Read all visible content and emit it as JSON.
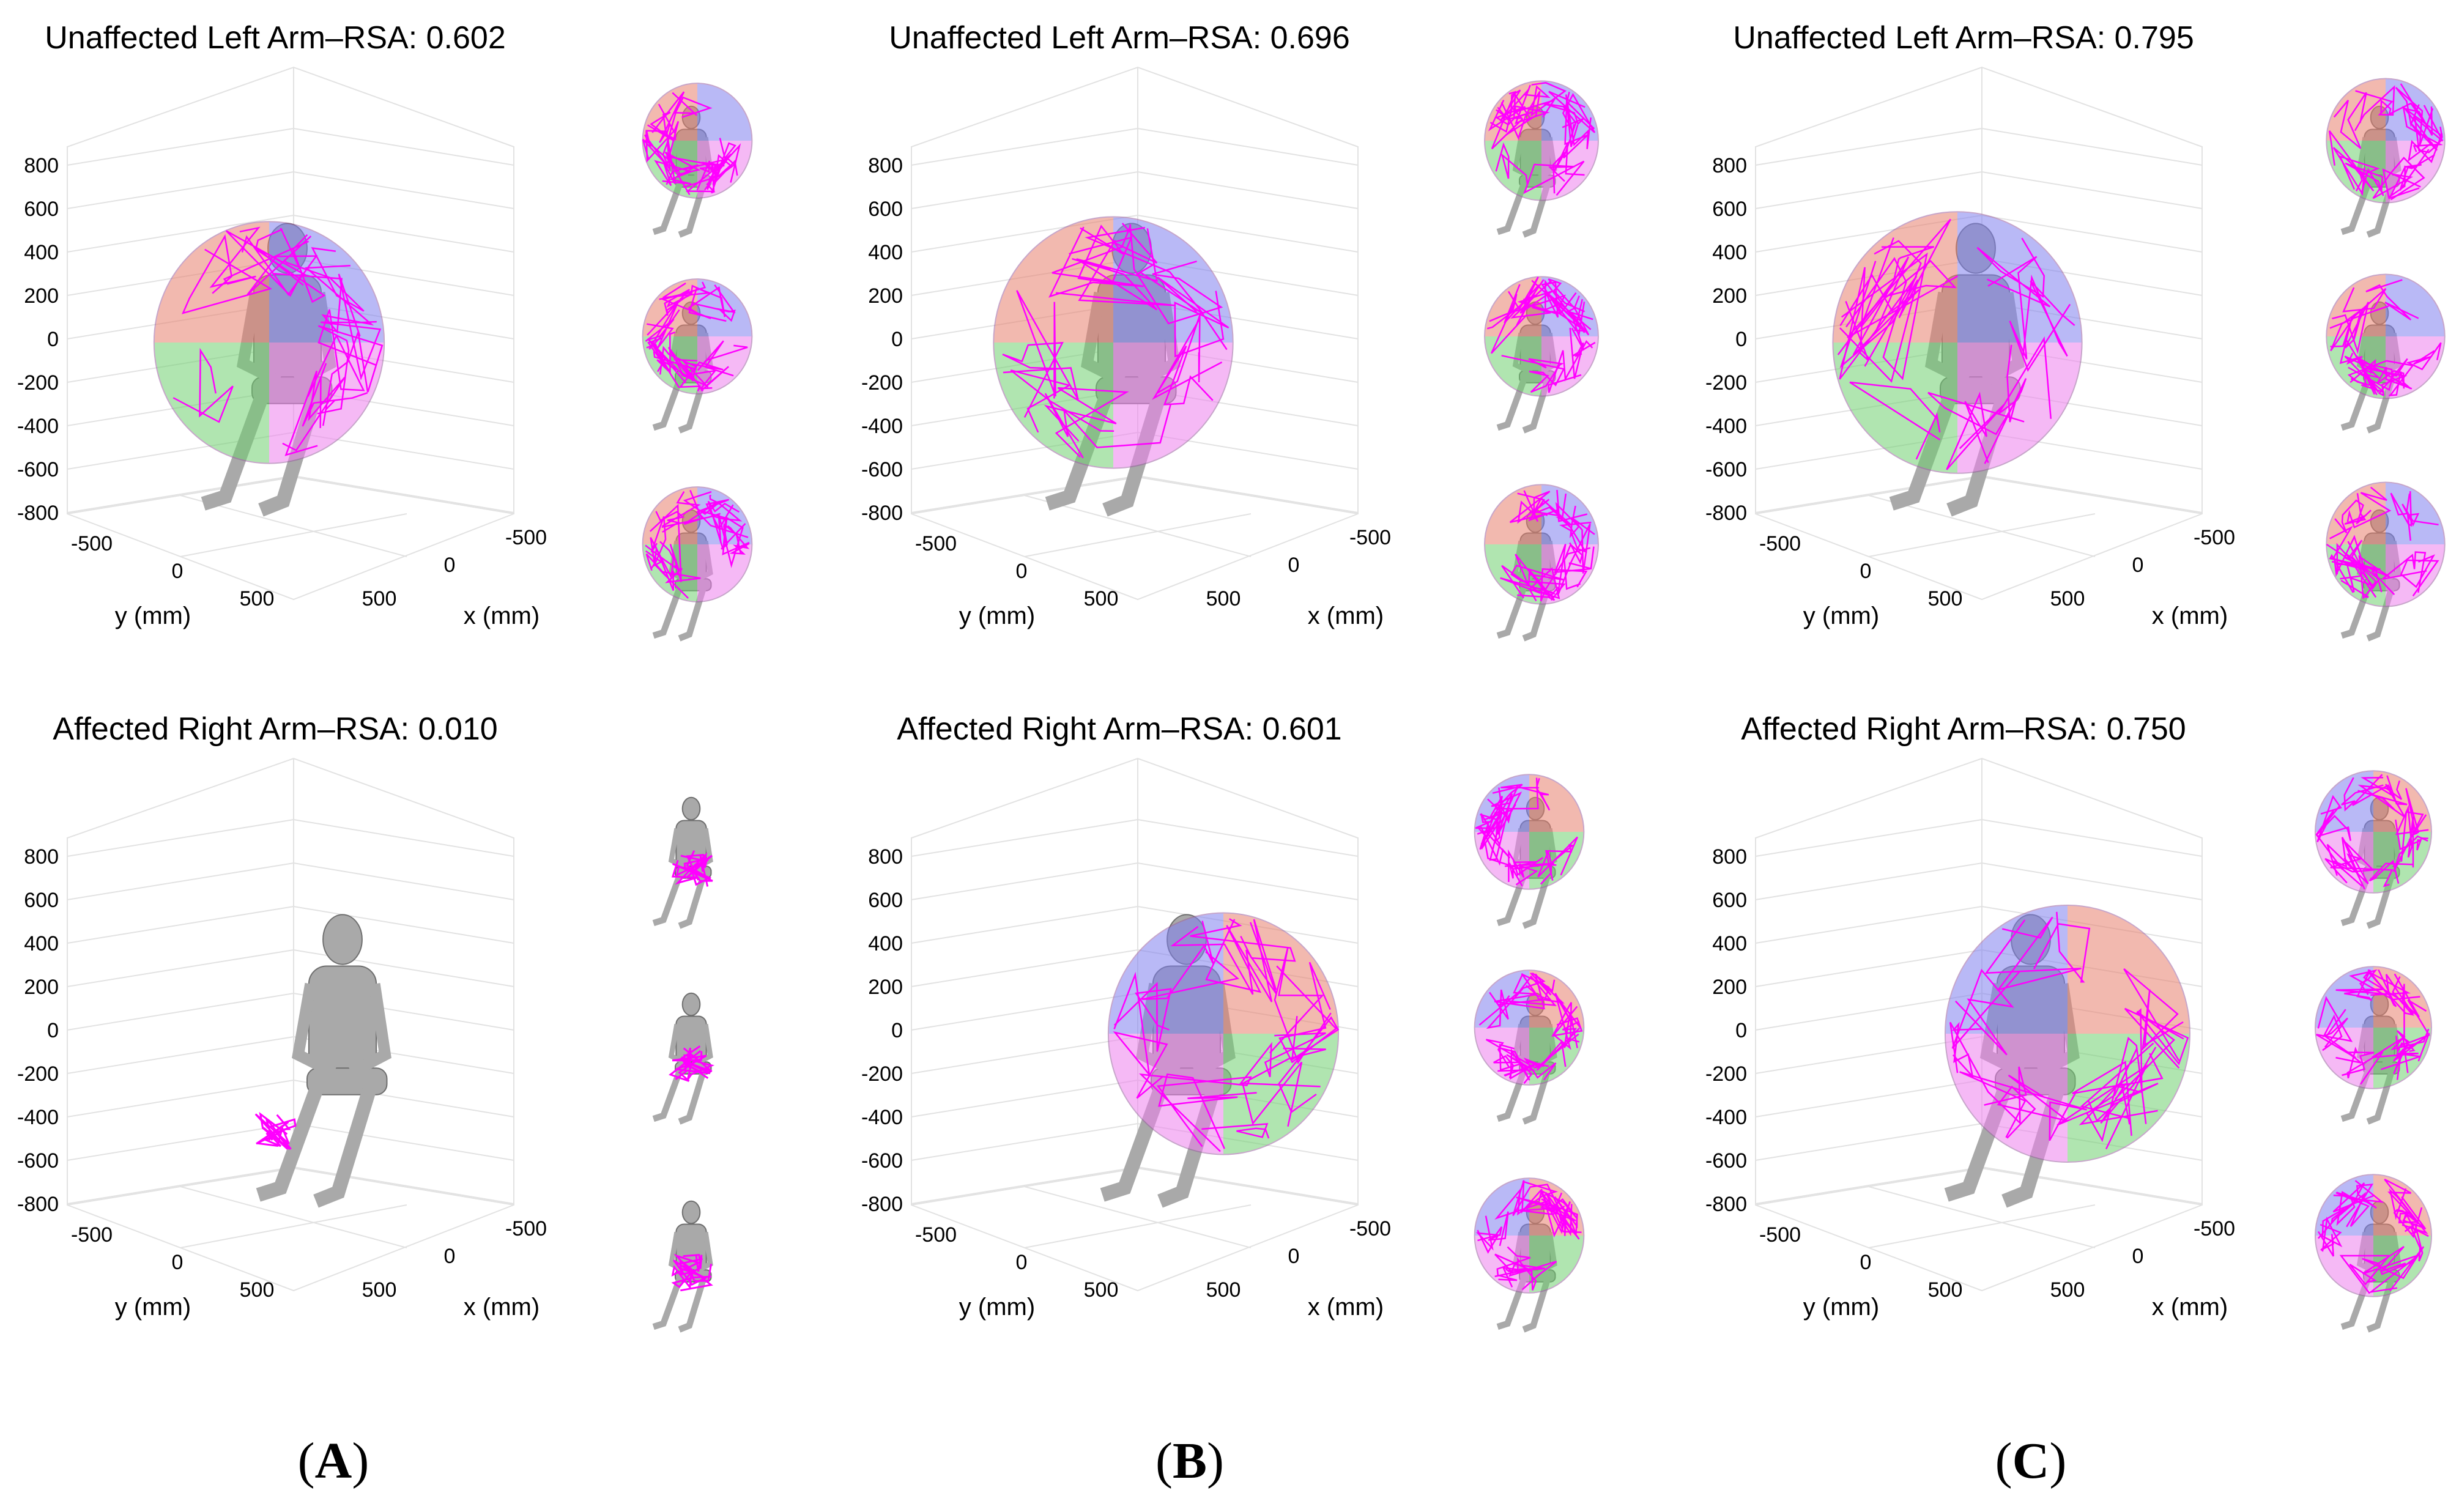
{
  "figure": {
    "column_labels": [
      {
        "letter": "A"
      },
      {
        "letter": "B"
      },
      {
        "letter": "C"
      }
    ],
    "panels": [
      {
        "id": "A-top",
        "title": "Unaffected Left Arm–RSA: 0.602",
        "arm": "left",
        "rsa": 0.602
      },
      {
        "id": "B-top",
        "title": "Unaffected Left Arm–RSA: 0.696",
        "arm": "left",
        "rsa": 0.696
      },
      {
        "id": "C-top",
        "title": "Unaffected Left Arm–RSA: 0.795",
        "arm": "left",
        "rsa": 0.795
      },
      {
        "id": "A-bottom",
        "title": "Affected Right Arm–RSA: 0.010",
        "arm": "right",
        "rsa": 0.01
      },
      {
        "id": "B-bottom",
        "title": "Affected Right Arm–RSA: 0.601",
        "arm": "right",
        "rsa": 0.601
      },
      {
        "id": "C-bottom",
        "title": "Affected Right Arm–RSA: 0.750",
        "arm": "right",
        "rsa": 0.75
      }
    ],
    "axes": {
      "z_ticks": [
        "800",
        "600",
        "400",
        "200",
        "0",
        "-200",
        "-400",
        "-600",
        "-800"
      ],
      "y_ticks": [
        "-500",
        "0",
        "500"
      ],
      "x_ticks": [
        "-500",
        "0",
        "500"
      ],
      "y_label": "y (mm)",
      "x_label": "x (mm)"
    },
    "colors": {
      "quadrant_red": "#e8806f",
      "quadrant_blue": "#8080f0",
      "quadrant_green": "#70d070",
      "quadrant_magenta": "#ee80ee",
      "trajectory": "#ff00ff",
      "body": "#a9a9a9",
      "grid": "#e2e2e2"
    }
  }
}
